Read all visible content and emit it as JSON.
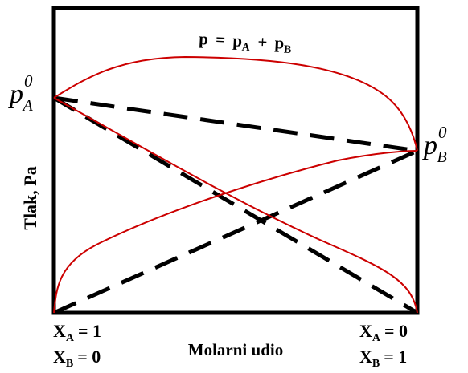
{
  "labels": {
    "y_axis": "Tlak, Pa",
    "x_axis": "Molarni udio",
    "total_pressure": {
      "p": "p",
      "eq": "=",
      "pA_base": "p",
      "pA_sub": "A",
      "plus": "+",
      "pB_base": "p",
      "pB_sub": "B"
    },
    "pA0": {
      "base": "p",
      "sub": "A",
      "sup": "0"
    },
    "pB0": {
      "base": "p",
      "sub": "B",
      "sup": "0"
    },
    "left_xA": {
      "base": "X",
      "sub": "A",
      "value": "= 1"
    },
    "left_xB": {
      "base": "X",
      "sub": "B",
      "value": "= 0"
    },
    "right_xA": {
      "base": "X",
      "sub": "A",
      "value": "= 0"
    },
    "right_xB": {
      "base": "X",
      "sub": "B",
      "value": "= 1"
    }
  },
  "colors": {
    "frame": "#000000",
    "ideal_lines": "#000000",
    "real_curves": "#cc0000"
  }
}
